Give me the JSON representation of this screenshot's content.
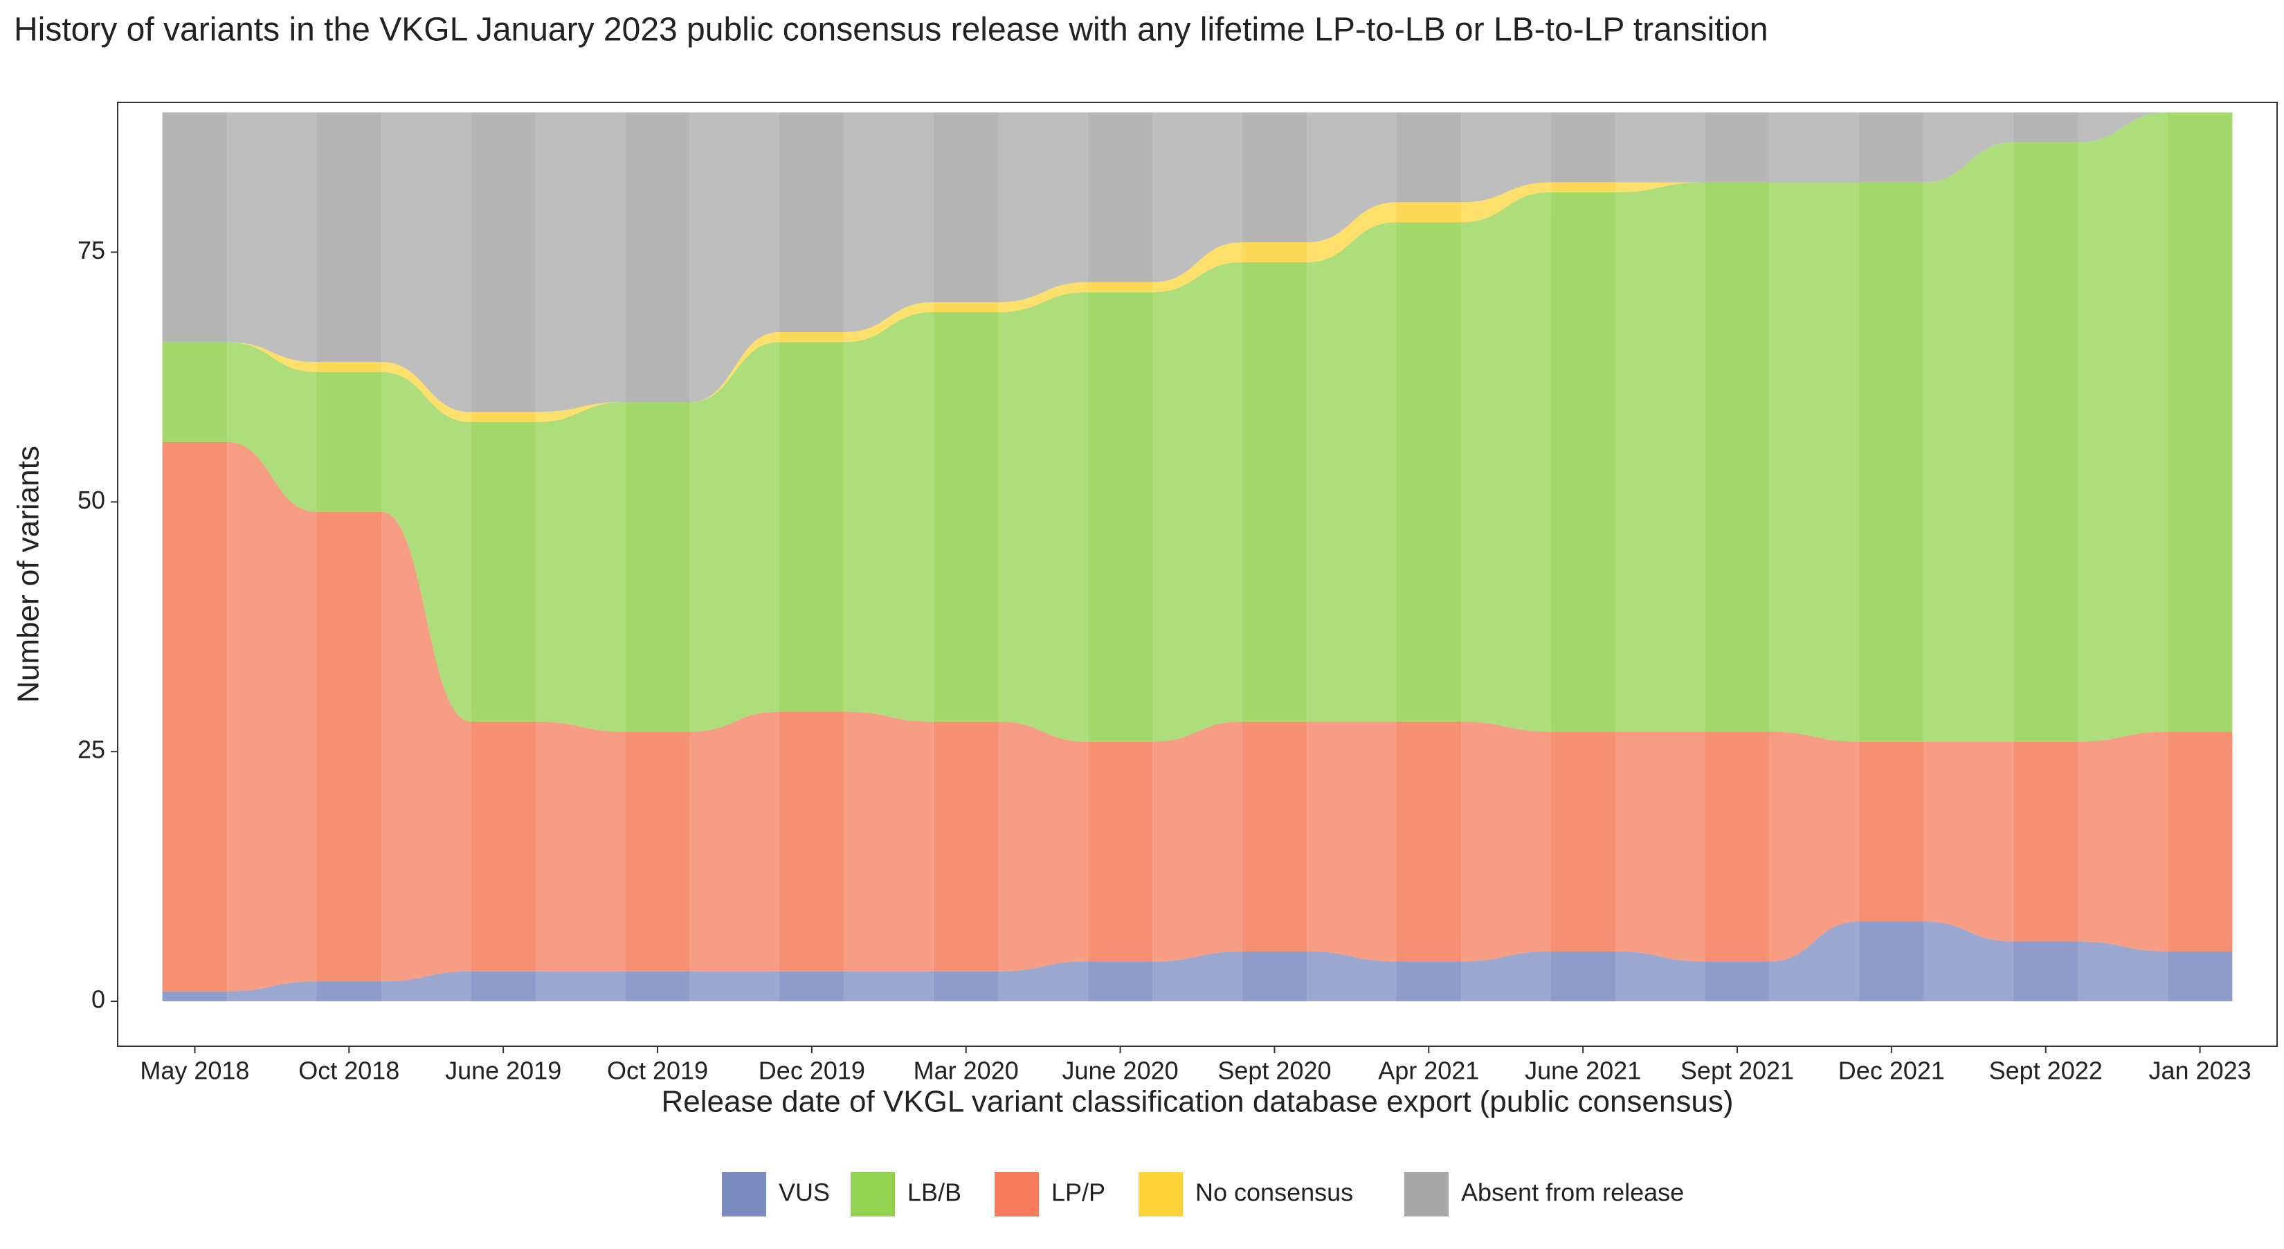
{
  "chart_data": {
    "type": "alluvial",
    "title": "History of variants in the VKGL January 2023 public consensus release with any lifetime LP-to-LB or LB-to-LP transition",
    "x_label": "Release date of VKGL variant classification database export (public consensus)",
    "y_label": "Number of variants",
    "categories": [
      "May 2018",
      "Oct 2018",
      "June 2019",
      "Oct 2019",
      "Dec 2019",
      "Mar 2020",
      "June 2020",
      "Sept 2020",
      "Apr 2021",
      "June 2021",
      "Sept 2021",
      "Dec 2021",
      "Sept 2022",
      "Jan 2023"
    ],
    "series": [
      {
        "name": "VUS",
        "color": "#7b8bc0",
        "values": [
          1,
          2,
          3,
          3,
          3,
          3,
          4,
          5,
          4,
          5,
          4,
          8,
          6,
          5
        ]
      },
      {
        "name": "LB/B",
        "color": "#93d150",
        "values": [
          10,
          14,
          30,
          33,
          37,
          41,
          45,
          46,
          50,
          54,
          55,
          56,
          60,
          62
        ]
      },
      {
        "name": "LP/P",
        "color": "#f47c5a",
        "values": [
          55,
          47,
          25,
          24,
          26,
          25,
          22,
          23,
          24,
          22,
          23,
          18,
          20,
          22
        ]
      },
      {
        "name": "No consensus",
        "color": "#fcd43a",
        "values": [
          0,
          1,
          1,
          0,
          1,
          1,
          1,
          2,
          2,
          1,
          0,
          0,
          0,
          0
        ]
      },
      {
        "name": "Absent from release",
        "color": "#a8a8a8",
        "values": [
          23,
          25,
          30,
          29,
          22,
          19,
          17,
          13,
          9,
          7,
          7,
          7,
          3,
          0
        ]
      }
    ],
    "ylim": [
      -4.5,
      90
    ],
    "yticks": [
      0,
      25,
      50,
      75
    ],
    "grid": false,
    "legend": "bottom"
  }
}
